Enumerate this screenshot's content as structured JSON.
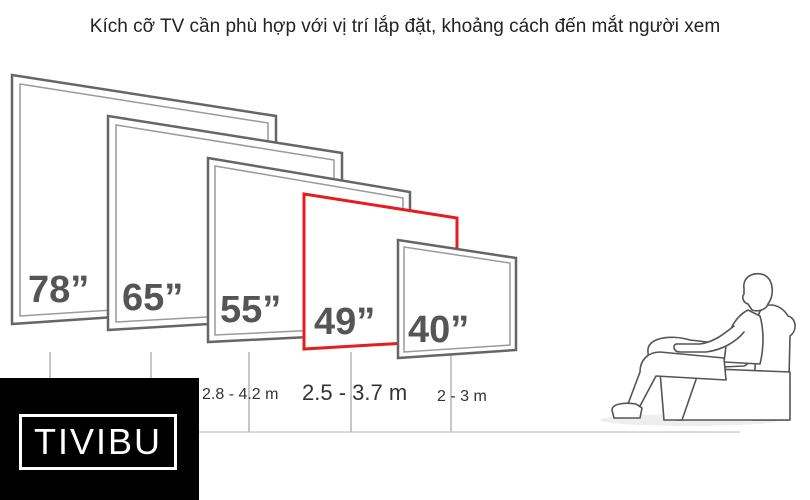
{
  "caption": "Kích cỡ TV cần phù hợp với vị trí lắp đặt, khoảng cách đến mắt người xem",
  "tvs": [
    {
      "size": "78”",
      "highlight": false
    },
    {
      "size": "65”",
      "highlight": false
    },
    {
      "size": "55”",
      "highlight": false
    },
    {
      "size": "49”",
      "highlight": true
    },
    {
      "size": "40”",
      "highlight": false
    }
  ],
  "distances": [
    {
      "label": "2.8 - 4.2 m"
    },
    {
      "label": "2.5 - 3.7 m"
    },
    {
      "label": "2 - 3 m"
    }
  ],
  "colors": {
    "highlight": "#e41e1e",
    "frame": "#666666",
    "text": "#555555"
  },
  "logo": {
    "text": "TIVIBU"
  }
}
